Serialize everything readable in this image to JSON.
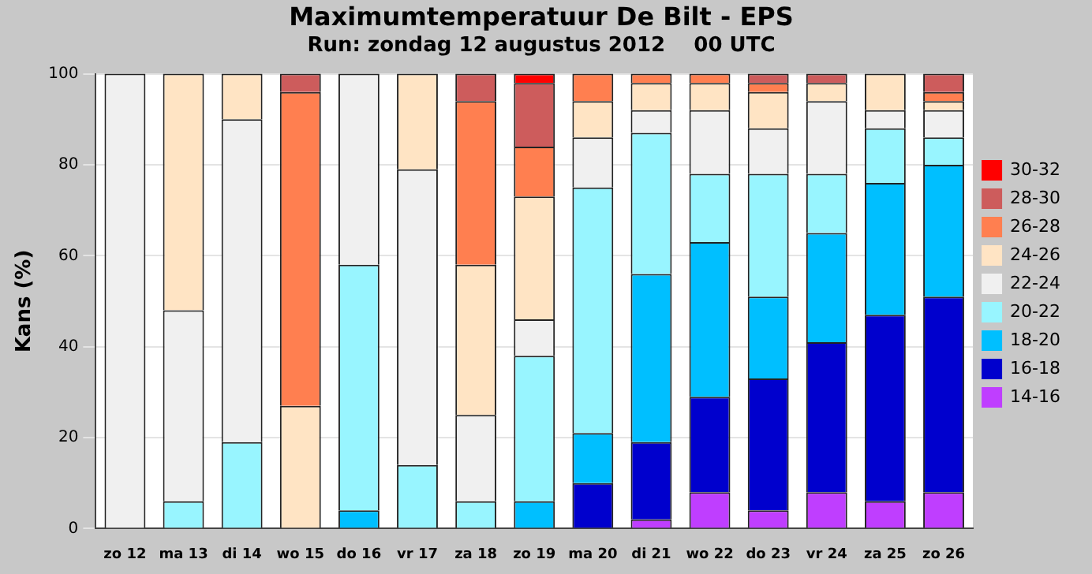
{
  "chart_data": {
    "type": "bar",
    "title": "Maximumtemperatuur De Bilt - EPS",
    "subtitle": "Run: zondag 12 augustus 2012    00 UTC",
    "ylabel": "Kans (%)",
    "categories": [
      "zo 12",
      "ma 13",
      "di 14",
      "wo 15",
      "do 16",
      "vr 17",
      "za 18",
      "zo 19",
      "ma 20",
      "di 21",
      "wo 22",
      "do 23",
      "vr 24",
      "za 25",
      "zo 26"
    ],
    "stacked": true,
    "ylim": [
      0,
      100
    ],
    "yticks": [
      0,
      20,
      40,
      60,
      80,
      100
    ],
    "grid": "y",
    "legend": "right",
    "series": [
      {
        "name": "14-16",
        "color": "#bf3eff",
        "values": [
          null,
          null,
          null,
          null,
          null,
          null,
          null,
          null,
          null,
          2,
          8,
          4,
          8,
          6,
          8
        ]
      },
      {
        "name": "16-18",
        "color": "#0000cd",
        "values": [
          null,
          null,
          null,
          null,
          null,
          null,
          null,
          null,
          10,
          17,
          21,
          29,
          33,
          41,
          43
        ]
      },
      {
        "name": "18-20",
        "color": "#00bfff",
        "values": [
          null,
          null,
          null,
          null,
          4,
          null,
          null,
          6,
          11,
          37,
          34,
          18,
          24,
          29,
          29
        ]
      },
      {
        "name": "20-22",
        "color": "#98f5ff",
        "values": [
          null,
          6,
          19,
          null,
          54,
          14,
          6,
          32,
          54,
          31,
          15,
          27,
          13,
          12,
          6
        ]
      },
      {
        "name": "22-24",
        "color": "#f0f0f0",
        "values": [
          100,
          42,
          71,
          null,
          42,
          65,
          19,
          8,
          11,
          5,
          14,
          10,
          16,
          4,
          6
        ]
      },
      {
        "name": "24-26",
        "color": "#ffe4c4",
        "values": [
          null,
          52,
          10,
          27,
          null,
          21,
          33,
          27,
          8,
          6,
          6,
          8,
          4,
          8,
          2
        ]
      },
      {
        "name": "26-28",
        "color": "#ff7f50",
        "values": [
          null,
          null,
          null,
          69,
          null,
          null,
          36,
          11,
          6,
          2,
          2,
          2,
          null,
          null,
          2
        ]
      },
      {
        "name": "28-30",
        "color": "#cd5c5c",
        "values": [
          null,
          null,
          null,
          4,
          null,
          null,
          6,
          14,
          null,
          null,
          null,
          2,
          2,
          null,
          4
        ]
      },
      {
        "name": "30-32",
        "color": "#ff0000",
        "values": [
          null,
          null,
          null,
          null,
          null,
          null,
          null,
          2,
          null,
          null,
          null,
          null,
          null,
          null,
          null
        ]
      }
    ]
  }
}
